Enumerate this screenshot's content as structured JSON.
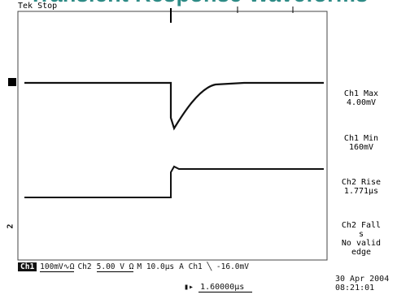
{
  "title": "Transient Response Waveforms",
  "status": "Tek Stop",
  "channel_markers": {
    "ch1": "D",
    "ch2": "2"
  },
  "measurements": [
    {
      "line1": "Ch1 Max",
      "line2": "4.00mV"
    },
    {
      "line1": "Ch1 Min",
      "line2": "160mV"
    },
    {
      "line1": "Ch2 Rise",
      "line2": "1.771µs"
    },
    {
      "line1": "Ch2 Fall",
      "line2": "s",
      "line3": "No valid",
      "line4": "edge"
    }
  ],
  "settings": {
    "ch1_badge": "Ch1",
    "ch1_scale": "100mV∿Ω",
    "ch2_label": "Ch2",
    "ch2_scale": "5.00 V Ω",
    "timebase": "M 10.0µs",
    "trigger": "A  Ch1  ╲  -16.0mV"
  },
  "trigger_position": {
    "prefix": "▮▸",
    "value": "1.60000µs"
  },
  "date": {
    "day": "30 Apr 2004",
    "time": "08:21:01"
  },
  "colors": {
    "title": "#2e8b86",
    "trace": "#111111",
    "grid": "#555555"
  }
}
